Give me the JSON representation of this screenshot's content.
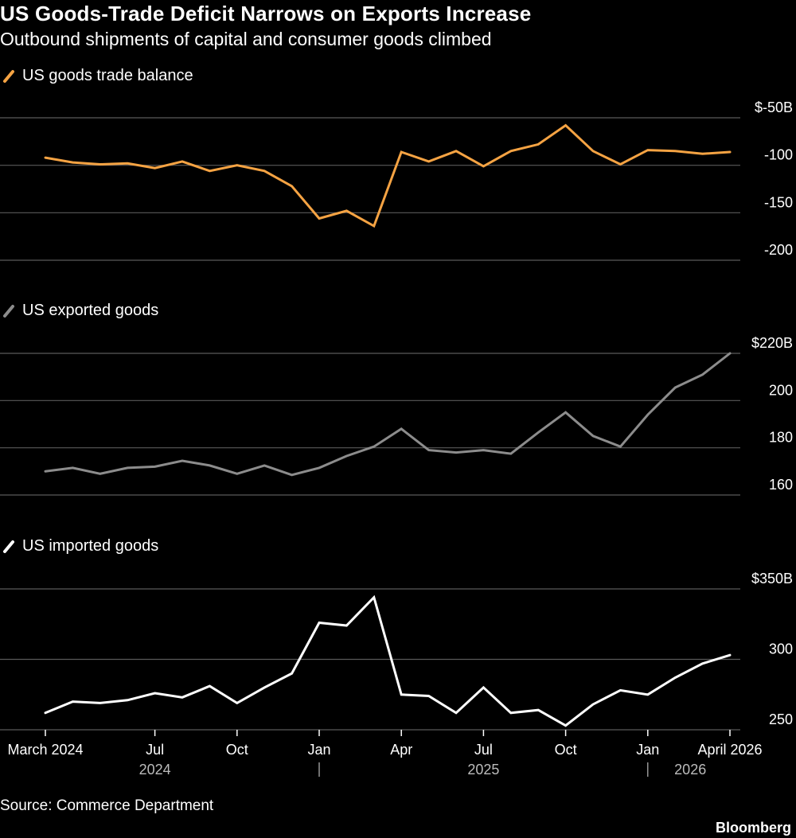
{
  "header": {
    "title": "US Goods-Trade Deficit Narrows on Exports Increase",
    "subtitle": "Outbound shipments of capital and consumer goods climbed"
  },
  "footer": {
    "source": "Source: Commerce Department",
    "brand": "Bloomberg"
  },
  "chart_data": {
    "type": "line",
    "x": [
      "2024-03",
      "2024-04",
      "2024-05",
      "2024-06",
      "2024-07",
      "2024-08",
      "2024-09",
      "2024-10",
      "2024-11",
      "2024-12",
      "2025-01",
      "2025-02",
      "2025-03",
      "2025-04",
      "2025-05",
      "2025-06",
      "2025-07",
      "2025-08",
      "2025-09",
      "2025-10",
      "2025-11",
      "2025-12",
      "2026-01",
      "2026-02",
      "2026-03",
      "2026-04"
    ],
    "x_ticks": [
      {
        "label": "March 2024",
        "x": "2024-03"
      },
      {
        "label": "Jul",
        "x": "2024-07"
      },
      {
        "label": "Oct",
        "x": "2024-10"
      },
      {
        "label": "Jan",
        "x": "2025-01"
      },
      {
        "label": "Apr",
        "x": "2025-04"
      },
      {
        "label": "Jul",
        "x": "2025-07"
      },
      {
        "label": "Oct",
        "x": "2025-10"
      },
      {
        "label": "Jan",
        "x": "2026-01"
      },
      {
        "label": "April 2026",
        "x": "2026-04"
      }
    ],
    "year_labels": [
      {
        "label": "2024",
        "x": "2024-07"
      },
      {
        "label": "2025",
        "x": "2025-07"
      },
      {
        "label": "2026",
        "x": "2026-02"
      }
    ],
    "year_separators": [
      "2025-01",
      "2026-01"
    ],
    "panels": [
      {
        "name": "US goods trade balance",
        "color": "#f5a343",
        "ylim": [
          -200,
          -50
        ],
        "ticks": [
          {
            "value": -50,
            "label": "$-50B"
          },
          {
            "value": -100,
            "label": "-100"
          },
          {
            "value": -150,
            "label": "-150"
          },
          {
            "value": -200,
            "label": "-200"
          }
        ],
        "values": [
          -92,
          -97,
          -99,
          -98,
          -103,
          -96,
          -106,
          -100,
          -106,
          -122,
          -156,
          -148,
          -164,
          -86,
          -96,
          -85,
          -101,
          -85,
          -78,
          -58,
          -85,
          -99,
          -84,
          -85,
          -88,
          -86
        ]
      },
      {
        "name": "US exported goods",
        "color": "#8c8c8c",
        "ylim": [
          160,
          220
        ],
        "ticks": [
          {
            "value": 220,
            "label": "$220B"
          },
          {
            "value": 200,
            "label": "200"
          },
          {
            "value": 180,
            "label": "180"
          },
          {
            "value": 160,
            "label": "160"
          }
        ],
        "values": [
          170,
          171.5,
          169,
          171.5,
          172,
          174.5,
          172.5,
          169,
          172.5,
          168.5,
          171.5,
          176.5,
          180.5,
          188,
          179,
          178,
          179,
          177.5,
          186.5,
          195,
          185,
          180.5,
          194,
          205.5,
          211,
          220
        ]
      },
      {
        "name": "US imported goods",
        "color": "#ffffff",
        "ylim": [
          250,
          350
        ],
        "ticks": [
          {
            "value": 350,
            "label": "$350B"
          },
          {
            "value": 300,
            "label": "300"
          },
          {
            "value": 250,
            "label": "250"
          }
        ],
        "values": [
          262,
          270,
          269,
          271,
          276,
          273,
          281,
          269,
          280,
          290,
          326,
          324,
          344,
          275,
          274,
          262,
          280,
          262,
          264,
          253,
          268,
          278,
          275,
          287,
          297,
          303
        ]
      }
    ]
  }
}
